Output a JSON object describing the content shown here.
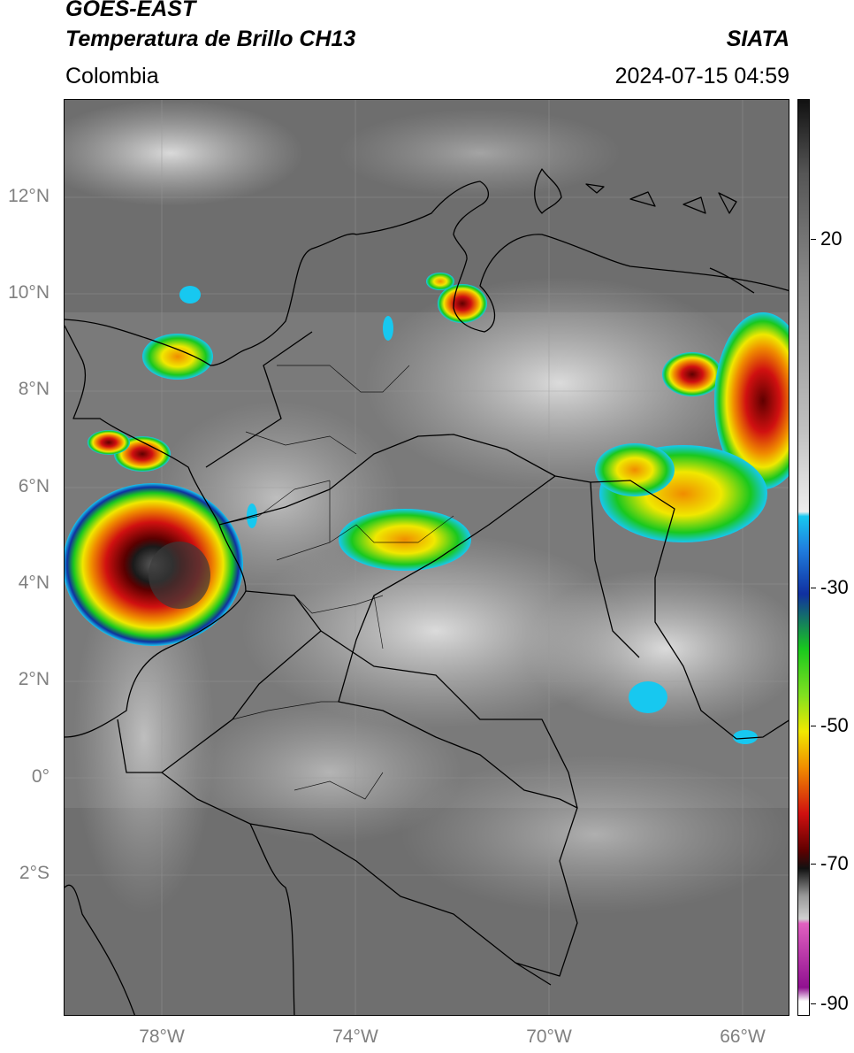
{
  "header": {
    "title_line1": "GOES-EAST",
    "title_line2": "Temperatura de Brillo CH13",
    "organization": "SIATA",
    "region": "Colombia",
    "timestamp": "2024-07-15 04:59"
  },
  "map": {
    "latitude_labels": [
      "12°N",
      "10°N",
      "8°N",
      "6°N",
      "4°N",
      "2°N",
      "0°",
      "2°S"
    ],
    "longitude_labels": [
      "78°W",
      "74°W",
      "70°W",
      "66°W"
    ]
  },
  "colorbar": {
    "tick_labels": [
      "20",
      "-30",
      "-50",
      "-70",
      "-90"
    ],
    "colors": {
      "warm_gray_top": "#111111",
      "mid_gray": "#8a8a8a",
      "light_gray": "#e8e8e8",
      "cyan": "#17c8f0",
      "blue": "#1030a0",
      "green": "#19c81e",
      "yellow": "#f0e800",
      "orange": "#f08c00",
      "red": "#d01010",
      "dark_red": "#600000",
      "black": "#000000",
      "pink": "#e060c0",
      "purple": "#901090"
    }
  }
}
